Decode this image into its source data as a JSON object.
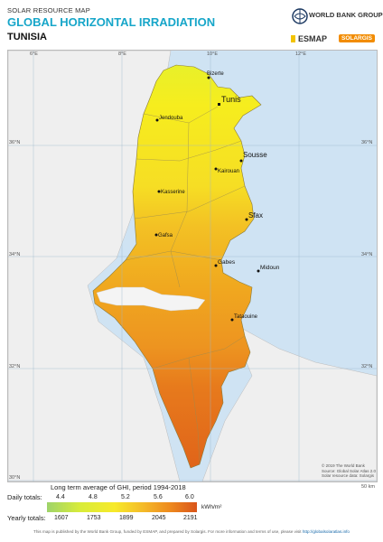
{
  "header": {
    "label": "SOLAR RESOURCE MAP",
    "title": "GLOBAL HORIZONTAL IRRADIATION",
    "country": "TUNISIA"
  },
  "logos": {
    "world_bank": "WORLD BANK GROUP",
    "esmap": "ESMAP",
    "solargis": "SOLARGIS"
  },
  "map": {
    "longitudes": [
      "6°E",
      "8°E",
      "10°E",
      "12°E"
    ],
    "latitudes": [
      "36°N",
      "34°N",
      "32°N",
      "30°N"
    ],
    "cities": [
      {
        "name": "Bizerte",
        "major": false
      },
      {
        "name": "Tunis",
        "major": true
      },
      {
        "name": "Jendouba",
        "major": false
      },
      {
        "name": "Sousse",
        "major": true
      },
      {
        "name": "Kairouan",
        "major": false
      },
      {
        "name": "Kasserine",
        "major": false
      },
      {
        "name": "Sfax",
        "major": true
      },
      {
        "name": "Gafsa",
        "major": false
      },
      {
        "name": "Gabes",
        "major": false
      },
      {
        "name": "Midoun",
        "major": false
      },
      {
        "name": "Tataouine",
        "major": false
      }
    ],
    "scale_label": "50 km",
    "copyright": [
      "© 2019 The World Bank",
      "Source: Global Solar Atlas 2.0",
      "Solar resource data: Solargis"
    ]
  },
  "legend": {
    "note": "Long term average of GHI, period 1994-2018",
    "daily_label": "Daily totals:",
    "daily_ticks": [
      "4.4",
      "4.8",
      "5.2",
      "5.6",
      "6.0"
    ],
    "unit": "kWh/m²",
    "yearly_label": "Yearly totals:",
    "yearly_ticks": [
      "1607",
      "1753",
      "1899",
      "2045",
      "2191"
    ]
  },
  "footer": {
    "text": "This map is published by the World Bank Group, funded by ESMAP, and prepared by Solargis. For more information and terms of use, please visit",
    "link": "http://globalsolaratlas.info"
  },
  "colors": {
    "title": "#17a6c9",
    "sea": "#cfe3f3",
    "neighbors": "#efefef"
  }
}
